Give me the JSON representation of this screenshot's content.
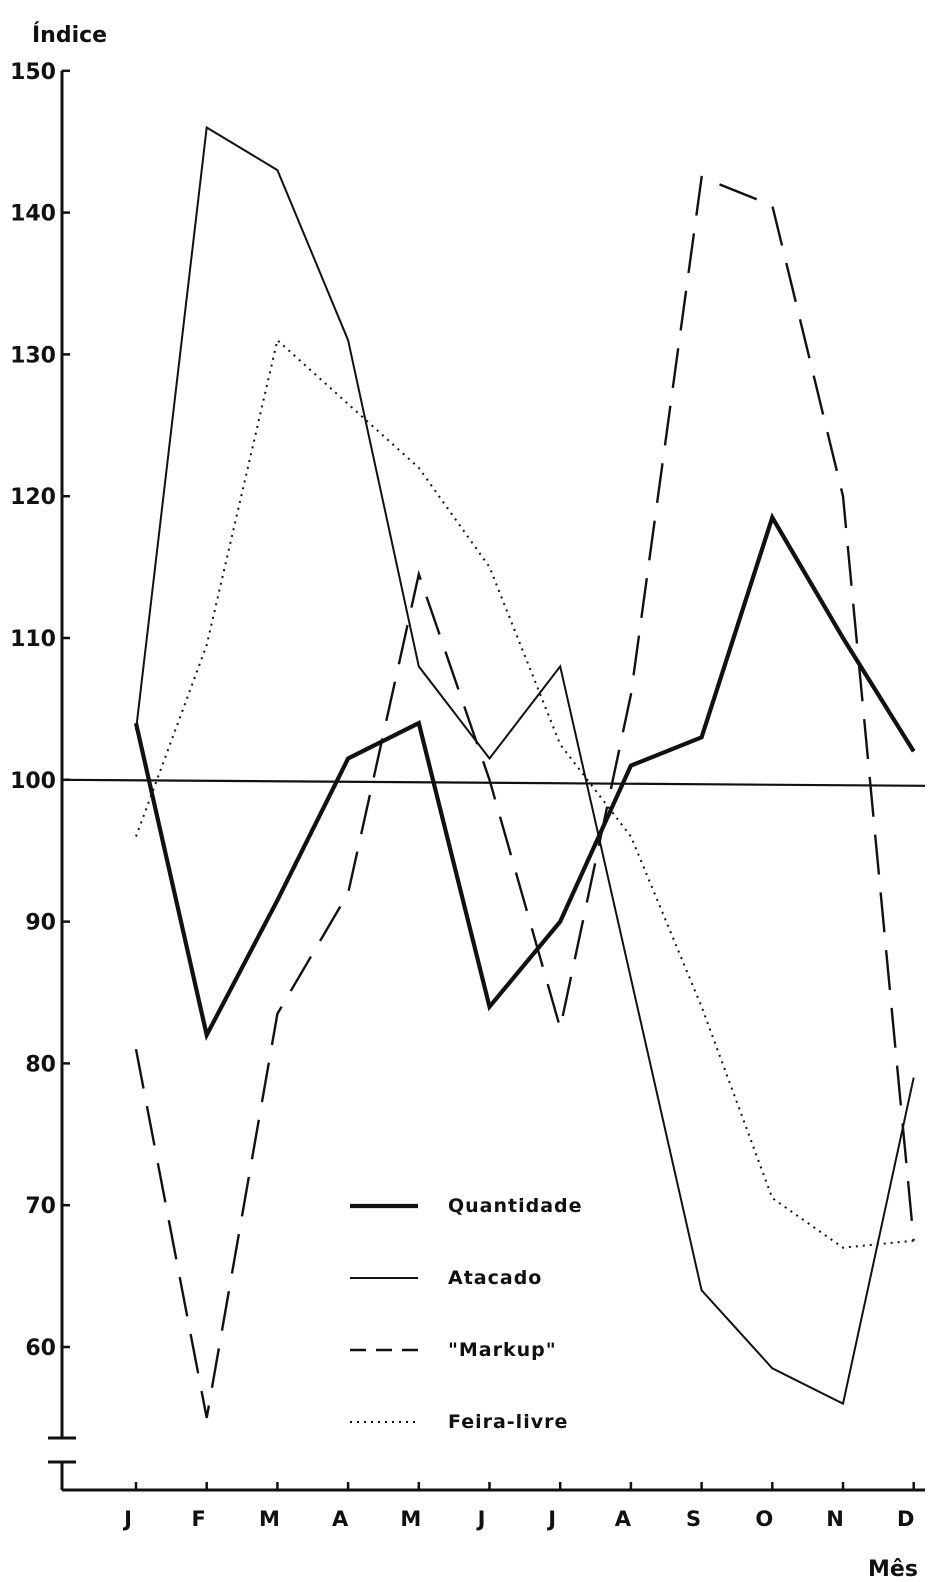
{
  "chart_data": {
    "type": "line",
    "title": "",
    "xlabel": "Mês",
    "ylabel": "Índice",
    "categories": [
      "J",
      "F",
      "M",
      "A",
      "M",
      "J",
      "J",
      "A",
      "S",
      "O",
      "N",
      "D"
    ],
    "ylim": [
      55,
      150
    ],
    "yticks": [
      60,
      70,
      80,
      90,
      100,
      110,
      120,
      130,
      140,
      150
    ],
    "reference_line": 100,
    "grid": false,
    "legend_position": "bottom-center",
    "series": [
      {
        "name": "Quantidade",
        "style": "thick-solid",
        "color": "#111111",
        "values": [
          104,
          82,
          91.5,
          101.5,
          104,
          84,
          90,
          101,
          103,
          118.5,
          110,
          102
        ]
      },
      {
        "name": "Atacado",
        "style": "thin-solid",
        "color": "#111111",
        "values": [
          103.5,
          146,
          143,
          131,
          108,
          101.5,
          108,
          86,
          64,
          58.5,
          56,
          79
        ]
      },
      {
        "name": "\"Markup\"",
        "style": "dashed",
        "color": "#111111",
        "values": [
          81,
          55,
          83.5,
          92,
          114.5,
          100,
          82.5,
          106,
          142.5,
          140.5,
          120,
          67.5
        ]
      },
      {
        "name": "Feira-livre",
        "style": "dotted",
        "color": "#111111",
        "values": [
          96,
          109.5,
          131,
          126.5,
          122,
          115,
          102.5,
          96,
          84,
          70.5,
          67,
          67.5
        ]
      }
    ]
  }
}
